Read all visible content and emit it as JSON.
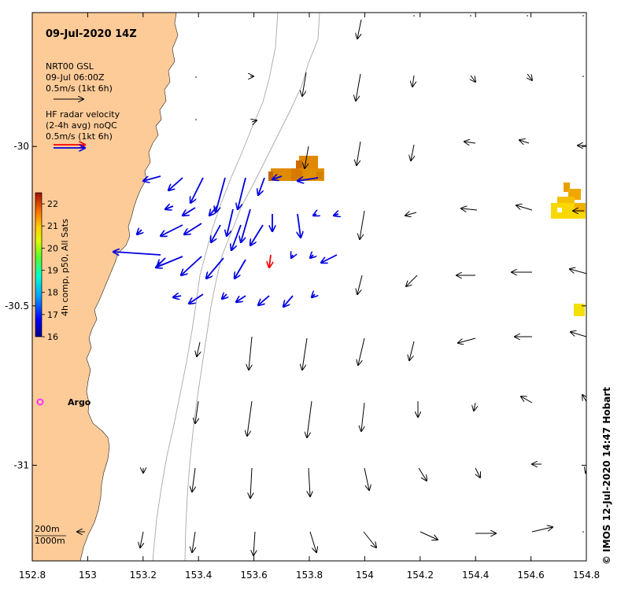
{
  "map": {
    "title": "09-Jul-2020 14Z",
    "lon_range": [
      152.8,
      154.8
    ],
    "lat_range": [
      -31.3,
      -29.58
    ],
    "x_ticks": [
      {
        "value": 152.8,
        "label": "152.8"
      },
      {
        "value": 153.0,
        "label": "153"
      },
      {
        "value": 153.2,
        "label": "153.2"
      },
      {
        "value": 153.4,
        "label": "153.4"
      },
      {
        "value": 153.6,
        "label": "153.6"
      },
      {
        "value": 153.8,
        "label": "153.8"
      },
      {
        "value": 154.0,
        "label": "154"
      },
      {
        "value": 154.2,
        "label": "154.2"
      },
      {
        "value": 154.4,
        "label": "154.4"
      },
      {
        "value": 154.6,
        "label": "154.6"
      },
      {
        "value": 154.8,
        "label": "154.8"
      }
    ],
    "y_ticks": [
      {
        "value": -30.0,
        "label": "-30"
      },
      {
        "value": -30.5,
        "label": "-30.5"
      },
      {
        "value": -31.0,
        "label": "-31"
      }
    ],
    "land_color": "#FDCB98",
    "isobath_color": "#a8a8a8"
  },
  "legend": {
    "model_line1": "NRT00 GSL",
    "model_line2": "09-Jul 06:00Z",
    "model_scale": "0.5m/s (1kt 6h)",
    "radar_line1": "HF radar velocity",
    "radar_line2": "(2-4h avg) noQC",
    "radar_scale": "0.5m/s (1kt 6h)",
    "isobath_200": "200m",
    "isobath_1000": "1000m"
  },
  "colorbar": {
    "label": "4h comp, p50, All Sats",
    "ticks": [
      22,
      21,
      20,
      19,
      18,
      17,
      16
    ],
    "min": 16,
    "max": 22.5
  },
  "argo": {
    "label": "Argo",
    "lon": 152.83,
    "lat": -30.8,
    "color": "#ff33ff"
  },
  "credit": "© IMOS 12-Jul-2020 14:47 Hobart",
  "colors": {
    "model_arrow": "#000000",
    "radar_arrow": "#0000e0",
    "radar_arrow_red": "#ff0000"
  }
}
